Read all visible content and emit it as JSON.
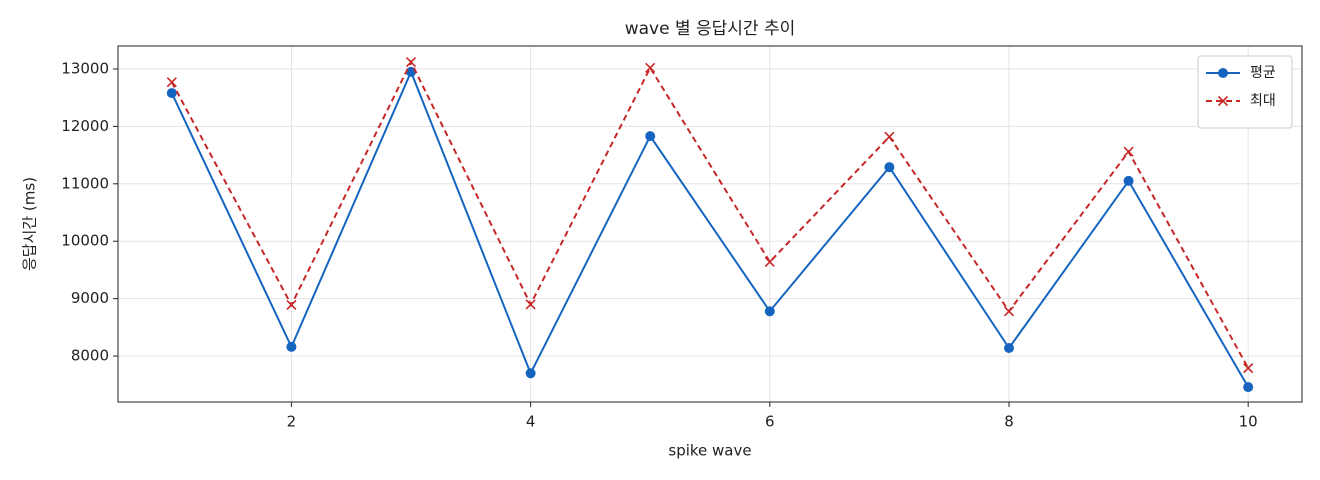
{
  "chart_data": {
    "type": "line",
    "title": "wave 별 응답시간 추이",
    "xlabel": "spike wave",
    "ylabel": "응답시간 (ms)",
    "x": [
      1,
      2,
      3,
      4,
      5,
      6,
      7,
      8,
      9,
      10
    ],
    "series": [
      {
        "name": "평균",
        "color": "#1565c0",
        "marker": "o",
        "linestyle": "solid",
        "values": [
          12580,
          8160,
          12950,
          7700,
          11830,
          8780,
          11290,
          8140,
          11050,
          7460
        ]
      },
      {
        "name": "최대",
        "color": "#c62828",
        "marker": "x",
        "linestyle": "dashed",
        "values": [
          12770,
          8890,
          13120,
          8900,
          13020,
          9640,
          11820,
          8780,
          11560,
          7790
        ]
      }
    ],
    "xlim": [
      0.55,
      10.45
    ],
    "xticks": [
      2,
      4,
      6,
      8,
      10
    ],
    "ylim": [
      7200,
      13400
    ],
    "yticks": [
      8000,
      9000,
      10000,
      11000,
      12000,
      13000
    ],
    "grid": true,
    "legend": "upper right"
  }
}
